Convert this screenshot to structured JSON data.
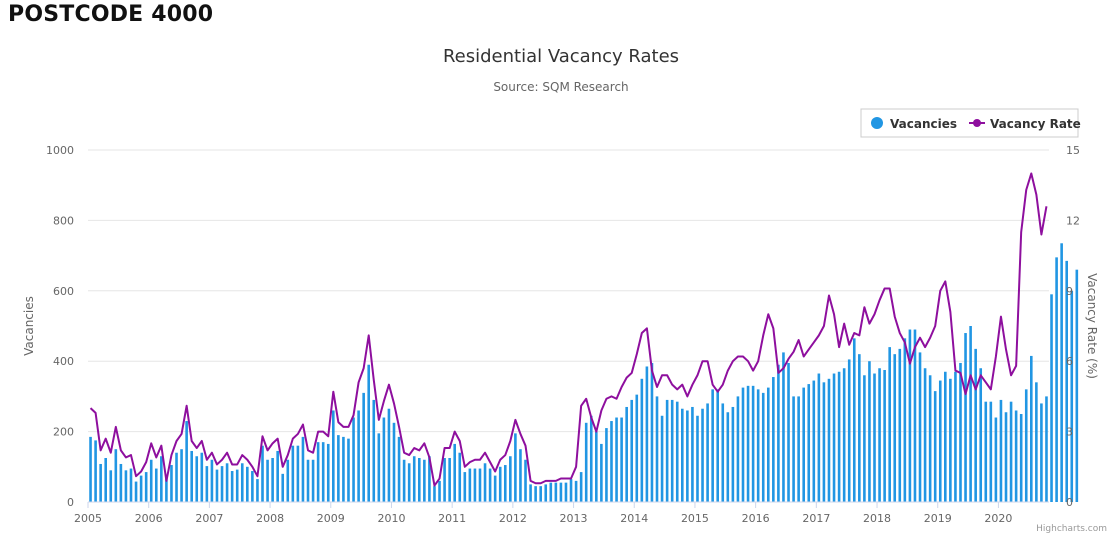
{
  "page": {
    "heading": "POSTCODE 4000"
  },
  "credits": "Highcharts.com",
  "colors": {
    "bars": "#2196E3",
    "line": "#8E0F9E",
    "grid": "#E6E6E6",
    "axis": "#CCD6EB"
  },
  "chart_data": {
    "type": "bar+line",
    "title": "Residential Vacancy Rates",
    "subtitle": "Source: SQM Research",
    "ylabel_left": "Vacancies",
    "ylabel_right": "Vacancy Rate (%)",
    "ylim_left": [
      0,
      1000
    ],
    "ylim_right": [
      0,
      15
    ],
    "yticks_left": [
      "0",
      "200",
      "400",
      "600",
      "800",
      "1000"
    ],
    "yticks_right": [
      "0",
      "3",
      "6",
      "9",
      "12",
      "15"
    ],
    "xticks": [
      "2005",
      "2006",
      "2007",
      "2008",
      "2009",
      "2010",
      "2011",
      "2012",
      "2013",
      "2014",
      "2015",
      "2016",
      "2017",
      "2018",
      "2019",
      "2020"
    ],
    "x_start": "2005-01",
    "x_unit": "month",
    "legend": [
      "Vacancies",
      "Vacancy Rate"
    ],
    "legend_position": "top-right",
    "series": [
      {
        "name": "Vacancies",
        "type": "column",
        "axis": "left",
        "values": [
          185,
          175,
          108,
          125,
          90,
          150,
          108,
          90,
          95,
          58,
          75,
          85,
          120,
          95,
          130,
          68,
          105,
          140,
          150,
          230,
          145,
          130,
          140,
          102,
          120,
          92,
          102,
          110,
          88,
          92,
          110,
          100,
          88,
          65,
          160,
          120,
          125,
          145,
          80,
          120,
          160,
          160,
          185,
          120,
          120,
          170,
          170,
          165,
          260,
          190,
          185,
          180,
          240,
          260,
          310,
          390,
          290,
          195,
          240,
          265,
          225,
          185,
          120,
          110,
          130,
          125,
          120,
          130,
          45,
          60,
          125,
          125,
          165,
          140,
          85,
          95,
          95,
          95,
          110,
          95,
          75,
          100,
          105,
          130,
          195,
          150,
          120,
          50,
          45,
          45,
          50,
          55,
          55,
          55,
          55,
          65,
          60,
          85,
          225,
          245,
          200,
          165,
          210,
          230,
          240,
          240,
          270,
          290,
          305,
          350,
          385,
          395,
          300,
          245,
          290,
          290,
          285,
          265,
          260,
          270,
          245,
          265,
          280,
          320,
          320,
          280,
          255,
          270,
          300,
          325,
          330,
          330,
          320,
          310,
          325,
          355,
          390,
          425,
          395,
          300,
          300,
          325,
          335,
          345,
          365,
          340,
          350,
          365,
          370,
          380,
          405,
          465,
          420,
          360,
          400,
          365,
          380,
          375,
          440,
          420,
          435,
          465,
          490,
          490,
          425,
          380,
          360,
          315,
          345,
          370,
          350,
          370,
          395,
          480,
          500,
          435,
          380,
          285,
          285,
          240,
          290,
          255,
          285,
          260,
          250,
          320,
          415,
          340,
          280,
          300,
          590,
          695,
          735,
          685,
          600,
          660
        ]
      },
      {
        "name": "Vacancy Rate",
        "type": "line",
        "axis": "right",
        "values": [
          4.0,
          3.8,
          2.2,
          2.7,
          2.1,
          3.2,
          2.2,
          1.9,
          2.0,
          1.1,
          1.3,
          1.7,
          2.5,
          1.9,
          2.4,
          0.9,
          2.0,
          2.6,
          2.9,
          4.1,
          2.6,
          2.3,
          2.6,
          1.8,
          2.1,
          1.6,
          1.8,
          2.1,
          1.6,
          1.6,
          2.0,
          1.8,
          1.5,
          1.1,
          2.8,
          2.2,
          2.5,
          2.7,
          1.5,
          2.0,
          2.7,
          2.9,
          3.3,
          2.2,
          2.1,
          3.0,
          3.0,
          2.8,
          4.7,
          3.4,
          3.2,
          3.2,
          3.7,
          5.1,
          5.7,
          7.1,
          5.2,
          3.5,
          4.3,
          5.0,
          4.2,
          3.2,
          2.1,
          2.0,
          2.3,
          2.2,
          2.5,
          1.9,
          0.7,
          1.0,
          2.3,
          2.3,
          3.0,
          2.6,
          1.5,
          1.7,
          1.8,
          1.8,
          2.1,
          1.7,
          1.3,
          1.8,
          2.0,
          2.6,
          3.5,
          2.9,
          2.4,
          0.9,
          0.8,
          0.8,
          0.9,
          0.9,
          0.9,
          1.0,
          1.0,
          1.0,
          1.5,
          4.1,
          4.4,
          3.6,
          3.0,
          3.9,
          4.4,
          4.5,
          4.4,
          4.9,
          5.3,
          5.5,
          6.3,
          7.2,
          7.4,
          5.6,
          4.9,
          5.4,
          5.4,
          5.0,
          4.8,
          5.0,
          4.5,
          5.0,
          5.4,
          6.0,
          6.0,
          5.0,
          4.7,
          5.0,
          5.6,
          6.0,
          6.2,
          6.2,
          6.0,
          5.6,
          6.0,
          7.1,
          8.0,
          7.4,
          5.5,
          5.7,
          6.1,
          6.4,
          6.9,
          6.2,
          6.5,
          6.8,
          7.1,
          7.5,
          8.8,
          8.0,
          6.6,
          7.6,
          6.7,
          7.2,
          7.1,
          8.3,
          7.6,
          8.0,
          8.6,
          9.1,
          9.1,
          7.9,
          7.2,
          6.8,
          5.9,
          6.6,
          7.0,
          6.6,
          7.0,
          7.5,
          9.0,
          9.4,
          8.1,
          5.6,
          5.5,
          4.6,
          5.4,
          4.8,
          5.4,
          5.1,
          4.8,
          6.2,
          7.9,
          6.5,
          5.4,
          5.8,
          11.5,
          13.3,
          14.0,
          13.1,
          11.4,
          12.6
        ]
      }
    ]
  }
}
